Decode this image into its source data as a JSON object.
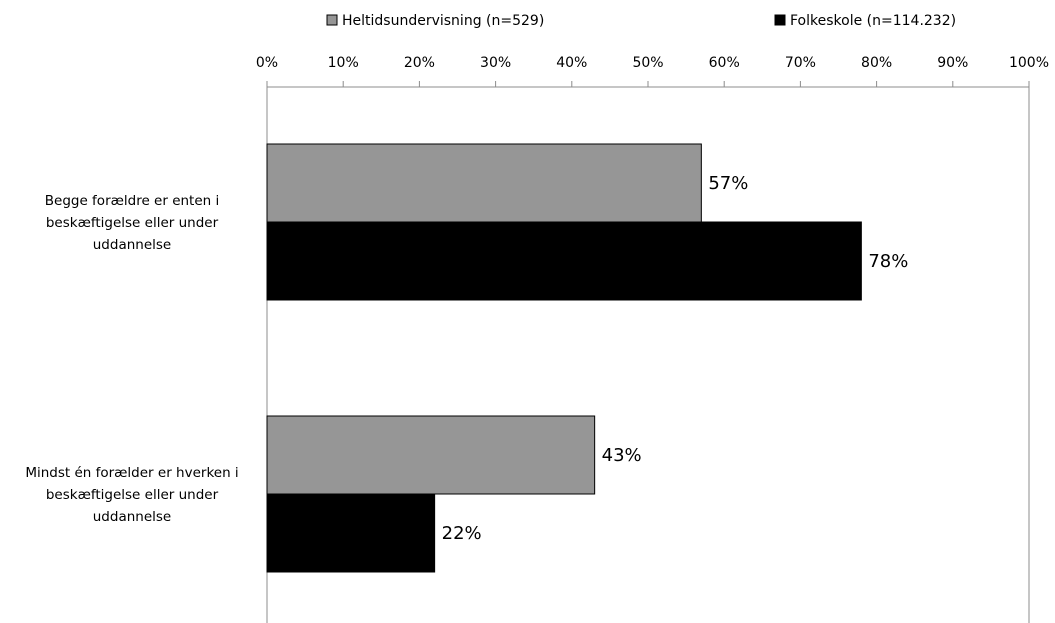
{
  "chart_data": {
    "type": "bar",
    "orientation": "horizontal",
    "categories": [
      "Begge forældre er enten i beskæftigelse eller under uddannelse",
      "Mindst én forælder er hverken i beskæftigelse eller under uddannelse"
    ],
    "category_lines": [
      [
        "Begge forældre er enten i",
        "beskæftigelse eller under",
        "uddannelse"
      ],
      [
        "Mindst én forælder er hverken i",
        "beskæftigelse eller under",
        "uddannelse"
      ]
    ],
    "series": [
      {
        "name": "Heltidsundervisning (n=529)",
        "values": [
          57,
          43
        ],
        "labels": [
          "57%",
          "43%"
        ],
        "color": "#969696"
      },
      {
        "name": "Folkeskole (n=114.232)",
        "values": [
          78,
          22
        ],
        "labels": [
          "78%",
          "22%"
        ],
        "color": "#000000"
      }
    ],
    "x_ticks": [
      "0%",
      "10%",
      "20%",
      "30%",
      "40%",
      "50%",
      "60%",
      "70%",
      "80%",
      "90%",
      "100%"
    ],
    "xlim": [
      0,
      100
    ],
    "x_axis_position": "top",
    "legend_position": "top",
    "grid": false
  }
}
